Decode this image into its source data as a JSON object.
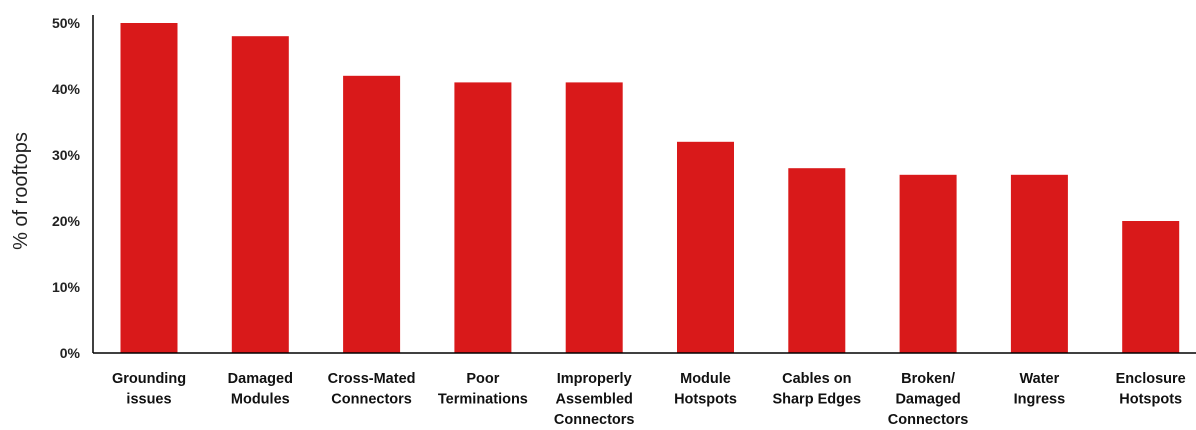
{
  "chart_data": {
    "type": "bar",
    "categories": [
      [
        "Grounding",
        "issues"
      ],
      [
        "Damaged",
        "Modules"
      ],
      [
        "Cross-Mated",
        "Connectors"
      ],
      [
        "Poor",
        "Terminations"
      ],
      [
        "Improperly",
        "Assembled",
        "Connectors"
      ],
      [
        "Module",
        "Hotspots"
      ],
      [
        "Cables on",
        "Sharp Edges"
      ],
      [
        "Broken/",
        "Damaged",
        "Connectors"
      ],
      [
        "Water",
        "Ingress"
      ],
      [
        "Enclosure",
        "Hotspots"
      ]
    ],
    "values": [
      50,
      48,
      42,
      41,
      41,
      32,
      28,
      27,
      27,
      20
    ],
    "ylabel": "% of rooftops",
    "ylim": [
      0,
      50
    ],
    "yticks": [
      0,
      10,
      20,
      30,
      40,
      50
    ],
    "ytick_labels": [
      "0%",
      "10%",
      "20%",
      "30%",
      "40%",
      "50%"
    ],
    "grid": false,
    "bar_color": "#d9191a"
  }
}
